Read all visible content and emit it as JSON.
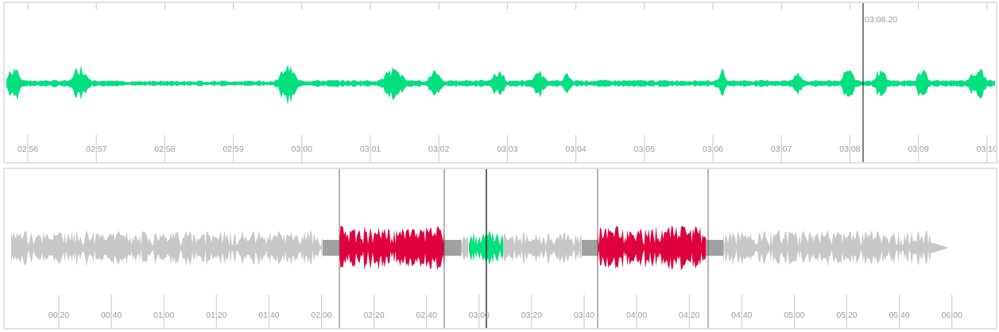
{
  "colors": {
    "waveform_active": "#00e07f",
    "waveform_inactive": "#c8c8c8",
    "region_red": "#e0003f",
    "crossfade_gray": "#a0a0a0",
    "tick": "#c8c8c8",
    "label": "#9a9a9a",
    "cursor": "#000000",
    "region_line": "#6e6e6e"
  },
  "detail": {
    "cursor_time": "03:08.20",
    "tick_labels": [
      "02:56",
      "02:57",
      "02:58",
      "02:59",
      "03:00",
      "03:01",
      "03:02",
      "03:03",
      "03:04",
      "03:05",
      "03:06",
      "03:07",
      "03:08",
      "03:09",
      "03:10"
    ]
  },
  "overview": {
    "tick_labels": [
      "00:20",
      "00:40",
      "01:00",
      "01:20",
      "01:40",
      "02:00",
      "02:20",
      "02:40",
      "03:00",
      "03:20",
      "03:40",
      "04:00",
      "04:20",
      "04:40",
      "05:00",
      "05:20",
      "05:40",
      "06:00"
    ]
  }
}
